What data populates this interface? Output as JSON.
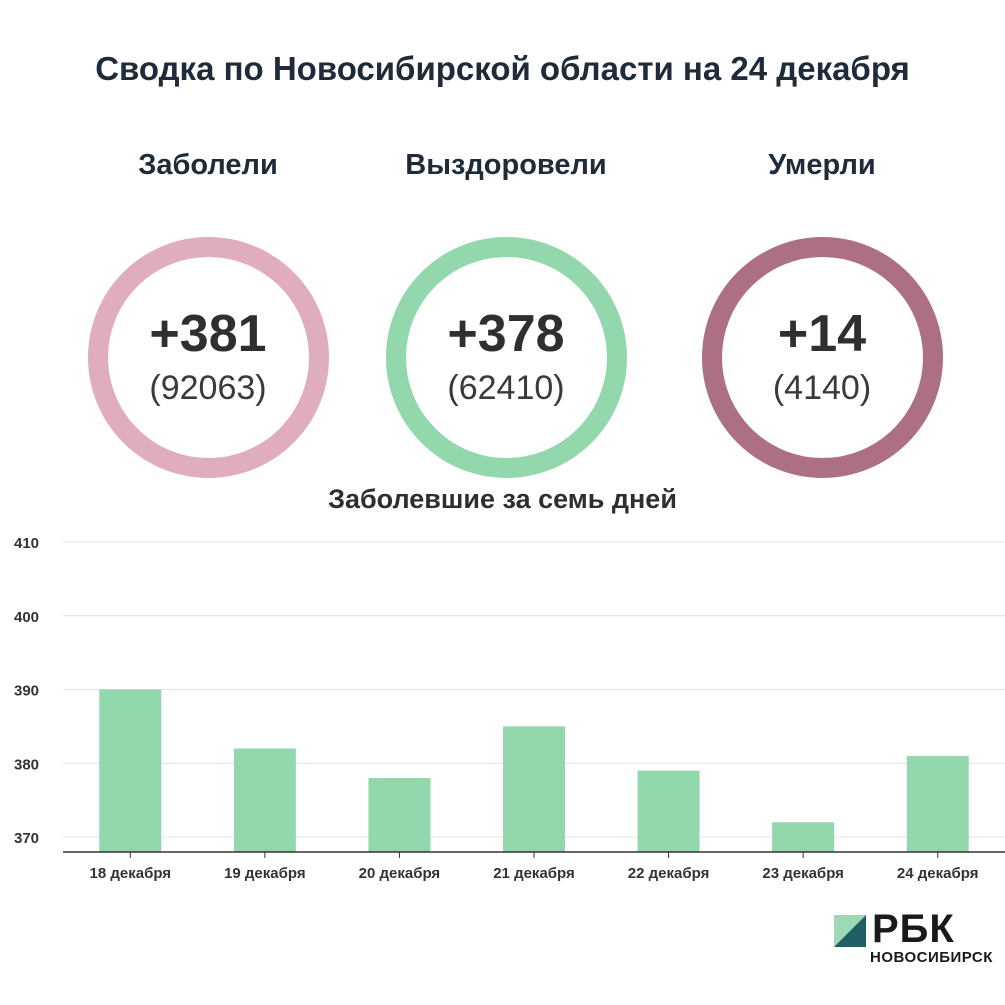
{
  "title": "Сводка по Новосибирской области на 24 декабря",
  "stats": [
    {
      "label": "Заболели",
      "value": "+381",
      "total": "(92063)",
      "color": "#dfadbd"
    },
    {
      "label": "Выздоровели",
      "value": "+378",
      "total": "(62410)",
      "color": "#93d7ad"
    },
    {
      "label": "Умерли",
      "value": "+14",
      "total": "(4140)",
      "color": "#ac6f84"
    }
  ],
  "chart_data": {
    "type": "bar",
    "title": "Заболевшие за семь дней",
    "categories": [
      "18 декабря",
      "19 декабря",
      "20 декабря",
      "21 декабря",
      "22 декабря",
      "23 декабря",
      "24 декабря"
    ],
    "values": [
      390,
      382,
      378,
      385,
      379,
      372,
      381
    ],
    "ylim": [
      368,
      410
    ],
    "yticks": [
      370,
      380,
      390,
      400,
      410
    ],
    "grid": true,
    "bar_color": "#93d7ad"
  },
  "logo": {
    "name": "РБК",
    "region": "НОВОСИБИРСК"
  }
}
